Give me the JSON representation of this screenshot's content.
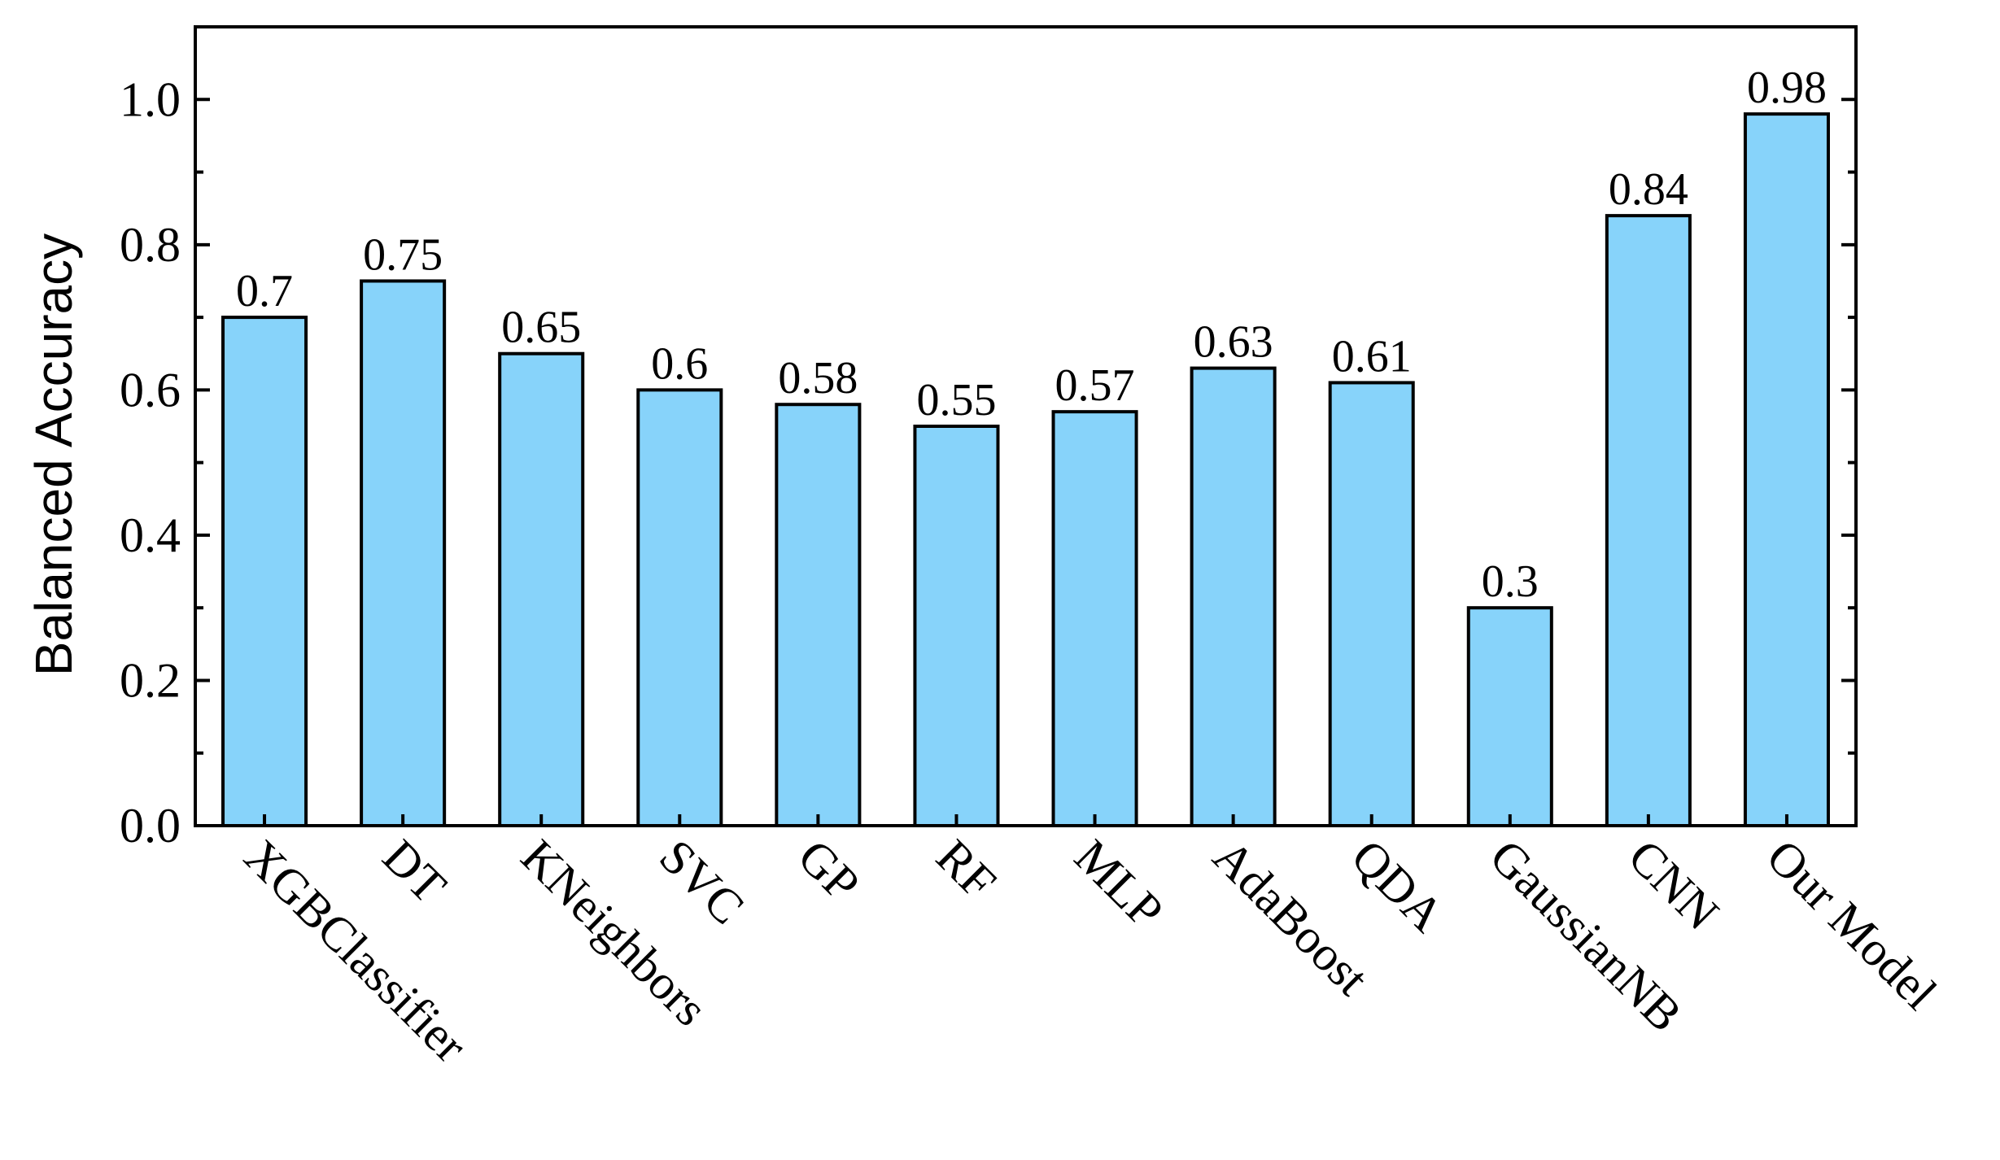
{
  "chart_data": {
    "type": "bar",
    "title": "",
    "xlabel": "",
    "ylabel": "Balanced Accuracy",
    "categories": [
      "XGBClassifier",
      "DT",
      "KNeighbors",
      "SVC",
      "GP",
      "RF",
      "MLP",
      "AdaBoost",
      "QDA",
      "GaussianNB",
      "CNN",
      "Our Model"
    ],
    "values": [
      0.7,
      0.75,
      0.65,
      0.6,
      0.58,
      0.55,
      0.57,
      0.63,
      0.61,
      0.3,
      0.84,
      0.98
    ],
    "value_labels": [
      "0.7",
      "0.75",
      "0.65",
      "0.6",
      "0.58",
      "0.55",
      "0.57",
      "0.63",
      "0.61",
      "0.3",
      "0.84",
      "0.98"
    ],
    "ylim": [
      0.0,
      1.1
    ],
    "yticks": [
      0.0,
      0.2,
      0.4,
      0.6,
      0.8,
      1.0
    ],
    "ytick_labels": [
      "0.0",
      "0.2",
      "0.4",
      "0.6",
      "0.8",
      "1.0"
    ],
    "grid": false,
    "legend": "none",
    "colors": {
      "bar_fill": "#87d3fa",
      "bar_stroke": "#000000",
      "axis": "#000000"
    }
  }
}
